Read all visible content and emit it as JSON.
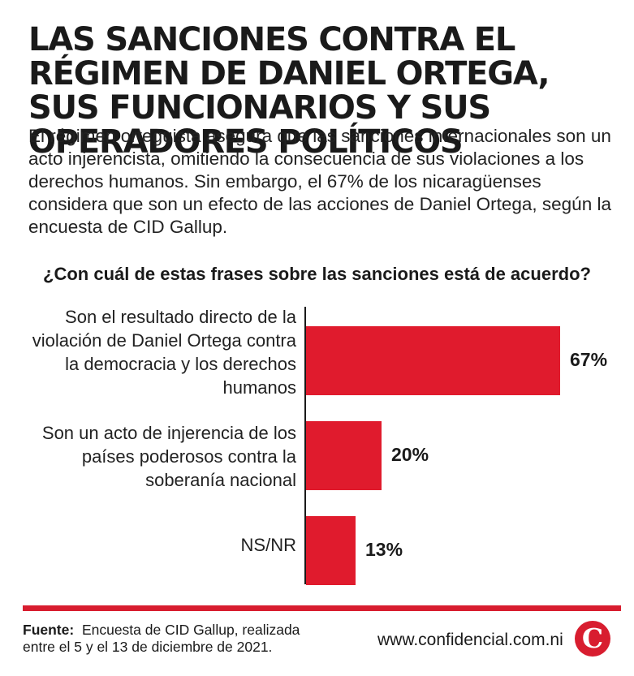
{
  "header": {
    "title": "LAS SANCIONES CONTRA EL RÉGIMEN DE DANIEL ORTEGA, SUS FUNCIONARIOS Y SUS OPERADORES POLÍTICOS",
    "subtitle": "El régimen orteguista asegura que las sanciones internacionales son un acto injerencista, omitiendo la consecuencia de sus violaciones a los derechos humanos. Sin embargo, el 67% de los nicaragüenses considera que son un efecto de las acciones de Daniel Ortega, según la encuesta de CID Gallup."
  },
  "chart_data": {
    "type": "bar",
    "orientation": "horizontal",
    "title": "¿Con cuál de estas frases sobre las sanciones está de acuerdo?",
    "categories": [
      "Son el resultado directo de la violación de Daniel Ortega contra la democracia y los derechos humanos",
      "Son un acto de injerencia de los países poderosos contra la soberanía nacional",
      "NS/NR"
    ],
    "values": [
      67,
      20,
      13
    ],
    "value_labels": [
      "67%",
      "20%",
      "13%"
    ],
    "unit": "%",
    "xlim": [
      0,
      67
    ],
    "bar_color": "#e01b2d",
    "grid": false,
    "legend": "none"
  },
  "footer": {
    "source_label": "Fuente:",
    "source_text": "Encuesta de CID Gallup, realizada entre el 5 y el 13 de diciembre de 2021.",
    "website": "www.confidencial.com.ni",
    "logo_letter": "C"
  },
  "colors": {
    "accent": "#d81d2f",
    "text": "#1a1a1a"
  }
}
